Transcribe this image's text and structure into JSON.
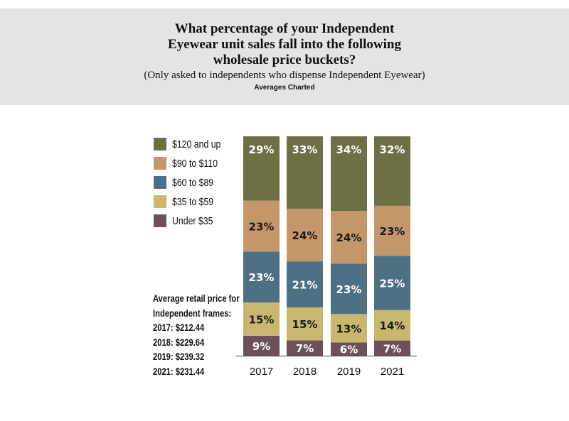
{
  "chart_data": {
    "type": "bar",
    "stacked": true,
    "title": "What percentage of your Independent Eyewear unit sales fall into the following wholesale price buckets?",
    "title_lines": [
      "What percentage of your Independent",
      "Eyewear unit sales fall into the following",
      "wholesale price buckets?"
    ],
    "subtitle": "(Only asked to independents who dispense Independent Eyewear)",
    "note": "Averages Charted",
    "categories": [
      "2017",
      "2018",
      "2019",
      "2021"
    ],
    "series": [
      {
        "name": "Under $35",
        "color": "#6e5059",
        "label_color": "#ffffff",
        "values": [
          9,
          7,
          6,
          7
        ]
      },
      {
        "name": "$35 to $59",
        "color": "#c9b76f",
        "label_color": "#1a1a1a",
        "values": [
          15,
          15,
          13,
          14
        ]
      },
      {
        "name": "$60 to $89",
        "color": "#4e7084",
        "label_color": "#ffffff",
        "values": [
          23,
          21,
          23,
          25
        ]
      },
      {
        "name": "$90 to $110",
        "color": "#c4976a",
        "label_color": "#1a1a1a",
        "values": [
          23,
          24,
          24,
          23
        ]
      },
      {
        "name": "$120 and up",
        "color": "#6e6f45",
        "label_color": "#ffffff",
        "values": [
          29,
          33,
          34,
          32
        ]
      }
    ],
    "legend": [
      "$120 and up",
      "$90 to $110",
      "$60 to $89",
      "$35 to $59",
      "Under $35"
    ],
    "legend_placement": "left",
    "ylabel": "",
    "xlabel": "",
    "ylim": [
      0,
      100
    ],
    "grid": false
  },
  "side_note": {
    "heading_lines": [
      "Average retail price for",
      "Independent frames:"
    ],
    "lines": [
      "2017: $212.44",
      "2018: $229.64",
      "2019: $239.32",
      "2021: $231.44"
    ]
  }
}
